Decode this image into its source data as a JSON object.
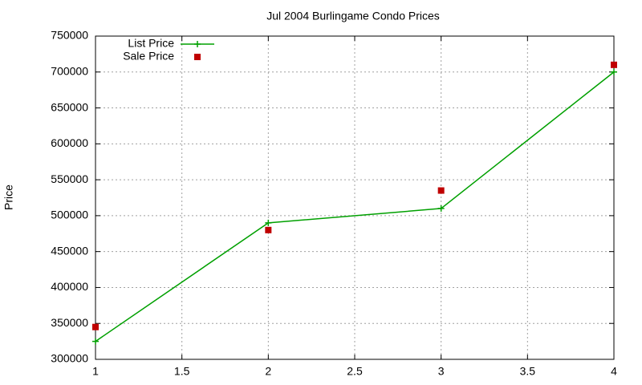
{
  "chart_data": {
    "type": "line",
    "title": "Jul 2004 Burlingame Condo Prices",
    "y_label": "Price",
    "x": [
      1,
      2,
      3,
      4
    ],
    "series": [
      {
        "name": "List Price",
        "color": "#00a000",
        "values": [
          325000,
          490000,
          510000,
          700000
        ],
        "line": true,
        "marker": "plus"
      },
      {
        "name": "Sale Price",
        "color": "#c00000",
        "values": [
          345000,
          480000,
          535000,
          710000
        ],
        "line": false,
        "marker": "square"
      }
    ],
    "xlim": [
      1,
      4
    ],
    "xticks": [
      1,
      1.5,
      2,
      2.5,
      3,
      3.5,
      4
    ],
    "ylim": [
      300000,
      750000
    ],
    "yticks": [
      300000,
      350000,
      400000,
      450000,
      500000,
      550000,
      600000,
      650000,
      700000,
      750000
    ],
    "grid": true,
    "legend": "top-left"
  }
}
